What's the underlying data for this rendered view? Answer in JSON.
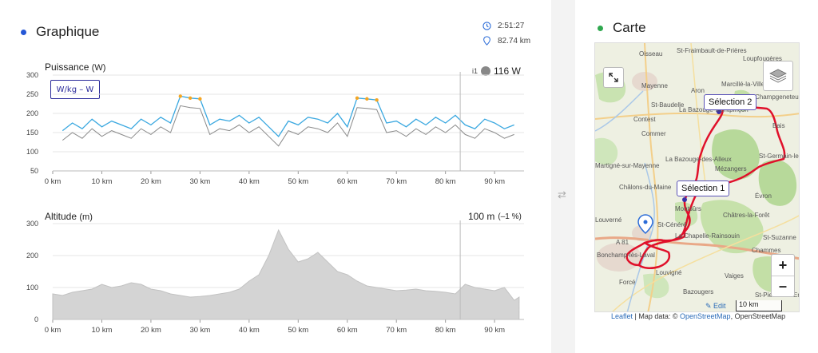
{
  "graph": {
    "title": "Graphique",
    "dot_color": "#2557d6",
    "duration": "2:51:27",
    "distance": "82.74 km"
  },
  "power": {
    "label": "Puissance",
    "unit": "(W)",
    "toggle_label": "W/kg – W",
    "marker_label": "i1",
    "current_value": "116 W"
  },
  "altitude": {
    "label": "Altitude",
    "unit": "(m)",
    "current_value": "100 m",
    "current_grade": "(–1 %)"
  },
  "map": {
    "title": "Carte",
    "dot_color": "#2fa84f",
    "selection1": "Sélection 1",
    "selection2": "Sélection 2",
    "scale_label": "10 km",
    "edit_label": "✎ Edit",
    "attribution_leaflet": "Leaflet",
    "attribution_sep": " | Map data: © ",
    "attribution_osm": "OpenStreetMap",
    "attribution_tail": ", OpenStreetMap",
    "zoom_in": "+",
    "zoom_out": "–",
    "places": [
      {
        "name": "Oisseau"
      },
      {
        "name": "St-Fraimbault-de-Prières"
      },
      {
        "name": "Loupfougères"
      },
      {
        "name": "Mayenne"
      },
      {
        "name": "Aron"
      },
      {
        "name": "Marcillé-la-Ville"
      },
      {
        "name": "St-Baudelle"
      },
      {
        "name": "Champgeneteux"
      },
      {
        "name": "Contest"
      },
      {
        "name": "La Bazouge-Montpinçon"
      },
      {
        "name": "Commer"
      },
      {
        "name": "Bais"
      },
      {
        "name": "Martigné-sur-Mayenne"
      },
      {
        "name": "La Bazouge-des-Alleux"
      },
      {
        "name": "St-Germain-le-Robert"
      },
      {
        "name": "Mézangers"
      },
      {
        "name": "Châlons-du-Maine"
      },
      {
        "name": "Évron"
      },
      {
        "name": "Montsûrs"
      },
      {
        "name": "Châtres-la-Forêt"
      },
      {
        "name": "Louverné"
      },
      {
        "name": "St-Cénéré"
      },
      {
        "name": "La Chapelle-Rainsouin"
      },
      {
        "name": "St-Suzanne"
      },
      {
        "name": "Bonchamp-lès-Laval"
      },
      {
        "name": "Chammes"
      },
      {
        "name": "Louvigné"
      },
      {
        "name": "Vaiges"
      },
      {
        "name": "Forcé"
      },
      {
        "name": "Bazougers"
      },
      {
        "name": "St-Pierre-sur-Erve"
      },
      {
        "name": "A 81"
      }
    ]
  },
  "chart_data": [
    {
      "type": "line",
      "title": "Puissance (W)",
      "xlabel": "km",
      "ylabel": "W",
      "x_ticks": [
        "0 km",
        "10 km",
        "20 km",
        "30 km",
        "40 km",
        "50 km",
        "60 km",
        "70 km",
        "80 km",
        "90 km"
      ],
      "y_ticks": [
        "50",
        "100",
        "150",
        "200",
        "250",
        "300"
      ],
      "xlim": [
        0,
        96
      ],
      "ylim": [
        50,
        300
      ],
      "cursor_x": 83,
      "series": [
        {
          "color": "#3aa8e0",
          "x": [
            2,
            4,
            6,
            8,
            10,
            12,
            14,
            16,
            18,
            20,
            22,
            24,
            26,
            28,
            30,
            32,
            34,
            36,
            38,
            40,
            42,
            44,
            46,
            48,
            50,
            52,
            54,
            56,
            58,
            60,
            62,
            64,
            66,
            68,
            70,
            72,
            74,
            76,
            78,
            80,
            82,
            84,
            86,
            88,
            90,
            92,
            94
          ],
          "values": [
            155,
            175,
            160,
            185,
            165,
            180,
            170,
            160,
            185,
            170,
            190,
            175,
            245,
            240,
            238,
            170,
            185,
            180,
            195,
            175,
            190,
            165,
            140,
            180,
            170,
            190,
            185,
            175,
            200,
            165,
            240,
            238,
            235,
            175,
            180,
            165,
            185,
            170,
            190,
            175,
            195,
            170,
            160,
            185,
            175,
            160,
            170
          ]
        }
      ]
    },
    {
      "type": "area",
      "title": "Altitude (m)",
      "xlabel": "km",
      "ylabel": "m",
      "x_ticks": [
        "0 km",
        "10 km",
        "20 km",
        "30 km",
        "40 km",
        "50 km",
        "60 km",
        "70 km",
        "80 km",
        "90 km"
      ],
      "y_ticks": [
        "0",
        "100",
        "200",
        "300"
      ],
      "xlim": [
        0,
        96
      ],
      "ylim": [
        0,
        300
      ],
      "cursor_x": 83,
      "series": [
        {
          "color": "#d4d4d4",
          "x": [
            0,
            2,
            4,
            6,
            8,
            10,
            12,
            14,
            16,
            18,
            20,
            22,
            24,
            26,
            28,
            30,
            32,
            34,
            36,
            38,
            40,
            42,
            44,
            46,
            48,
            50,
            52,
            54,
            56,
            58,
            60,
            62,
            64,
            66,
            68,
            70,
            72,
            74,
            76,
            78,
            80,
            82,
            84,
            86,
            88,
            90,
            92,
            94,
            95
          ],
          "values": [
            80,
            75,
            85,
            90,
            95,
            110,
            100,
            105,
            115,
            110,
            95,
            90,
            80,
            75,
            70,
            72,
            75,
            80,
            85,
            95,
            120,
            140,
            200,
            280,
            220,
            180,
            190,
            210,
            180,
            150,
            140,
            120,
            105,
            100,
            95,
            90,
            92,
            95,
            90,
            88,
            85,
            80,
            110,
            100,
            95,
            90,
            100,
            60,
            70
          ]
        }
      ]
    }
  ]
}
